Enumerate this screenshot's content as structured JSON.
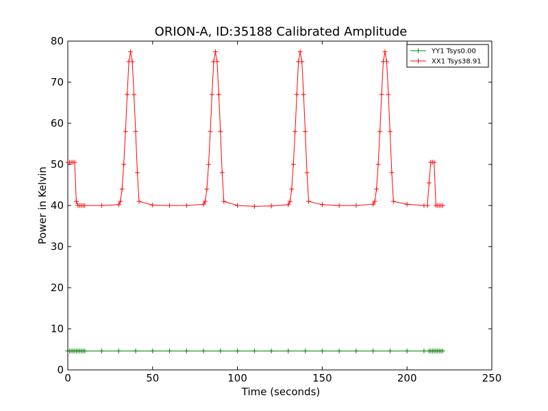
{
  "chart_data": {
    "type": "line",
    "title": "ORION-A, ID:35188 Calibrated Amplitude",
    "xlabel": "Time (seconds)",
    "ylabel": "Power in Kelvin",
    "xlim": [
      0,
      250
    ],
    "ylim": [
      0,
      80
    ],
    "xticks": [
      "0",
      "50",
      "100",
      "150",
      "200",
      "250"
    ],
    "yticks": [
      "0",
      "10",
      "20",
      "30",
      "40",
      "50",
      "60",
      "70",
      "80"
    ],
    "grid": false,
    "legend_position": "top-right",
    "series": [
      {
        "name": "YY1 Tsys0.00",
        "color": "#008000",
        "marker": "plus",
        "x": [
          0,
          1,
          2,
          3,
          4,
          5,
          6,
          7,
          8,
          9,
          10,
          20,
          30,
          40,
          50,
          60,
          70,
          80,
          90,
          100,
          110,
          120,
          130,
          140,
          150,
          160,
          170,
          180,
          190,
          200,
          210,
          213,
          214,
          215,
          216,
          217,
          218,
          219,
          220,
          221
        ],
        "y": [
          4.6,
          4.6,
          4.6,
          4.6,
          4.6,
          4.6,
          4.6,
          4.6,
          4.6,
          4.6,
          4.6,
          4.6,
          4.6,
          4.6,
          4.6,
          4.6,
          4.6,
          4.6,
          4.6,
          4.6,
          4.6,
          4.6,
          4.6,
          4.6,
          4.6,
          4.6,
          4.6,
          4.6,
          4.6,
          4.6,
          4.6,
          4.6,
          4.6,
          4.6,
          4.6,
          4.6,
          4.6,
          4.6,
          4.6,
          4.6
        ]
      },
      {
        "name": "XX1 Tsys38.91",
        "color": "#ff0000",
        "marker": "plus",
        "x": [
          0,
          1,
          2,
          3,
          4,
          5,
          6,
          7,
          8,
          9,
          10,
          20,
          30,
          31,
          32,
          33,
          34,
          35,
          36,
          37,
          38,
          39,
          40,
          41,
          42,
          50,
          60,
          70,
          80,
          81,
          82,
          83,
          84,
          85,
          86,
          87,
          88,
          89,
          90,
          91,
          92,
          100,
          110,
          120,
          130,
          131,
          132,
          133,
          134,
          135,
          136,
          137,
          138,
          139,
          140,
          141,
          142,
          150,
          160,
          170,
          180,
          181,
          182,
          183,
          184,
          185,
          186,
          187,
          188,
          189,
          190,
          191,
          192,
          200,
          210,
          212,
          213,
          214,
          215,
          216,
          217,
          218,
          219,
          220,
          221
        ],
        "y": [
          50.5,
          50.5,
          50.5,
          50.5,
          50.5,
          41,
          40,
          40,
          40,
          40,
          40,
          40,
          40.2,
          41,
          44,
          50,
          58,
          67,
          75,
          77.4,
          75,
          67,
          58,
          48,
          41,
          40.1,
          40,
          40,
          40.3,
          41,
          44,
          50,
          58,
          67,
          75,
          77.4,
          75,
          67,
          58,
          48,
          41,
          40,
          39.8,
          39.9,
          40.2,
          41,
          44,
          50,
          58,
          67,
          75,
          77.4,
          75,
          67,
          58,
          48,
          41,
          40.2,
          40,
          40,
          40.3,
          41,
          44,
          50,
          58,
          67,
          75,
          77.4,
          75,
          67,
          58,
          48,
          41,
          40.3,
          40,
          40,
          45.5,
          50.5,
          50.5,
          50.5,
          40,
          40,
          40,
          40,
          40
        ]
      }
    ]
  }
}
